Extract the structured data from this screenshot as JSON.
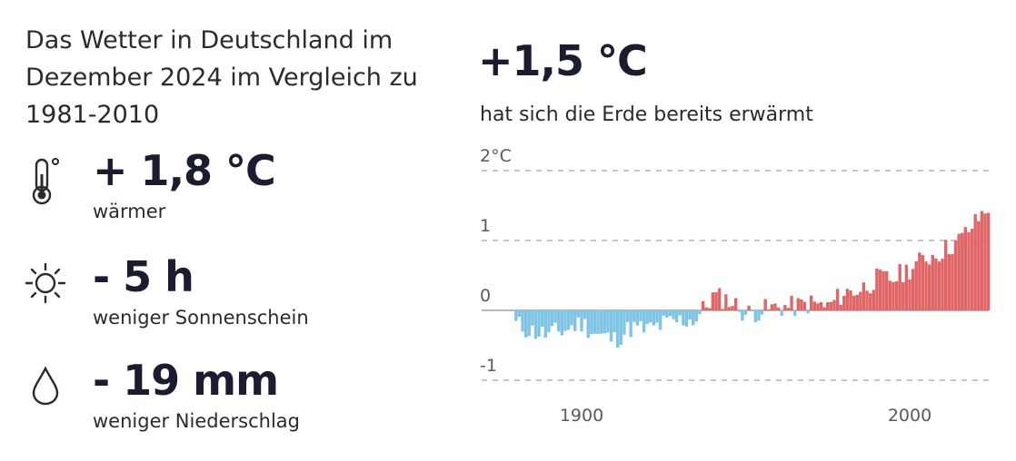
{
  "left": {
    "title": "Das Wetter in Deutschland im Dezember 2024 im Vergleich zu 1981-2010",
    "stats": [
      {
        "icon": "thermometer-icon",
        "value": "+ 1,8 °C",
        "label": "wärmer"
      },
      {
        "icon": "sun-icon",
        "value": "- 5 h",
        "label": "weniger Sonnenschein"
      },
      {
        "icon": "raindrop-icon",
        "value": "- 19 mm",
        "label": "weniger Niederschlag"
      }
    ]
  },
  "right": {
    "value": "+1,5 °C",
    "description": "hat sich die Erde bereits erwärmt"
  },
  "chart_data": {
    "type": "bar",
    "title": "",
    "xlabel": "",
    "ylabel": "",
    "unit": "°C",
    "x_ticks": [
      1900,
      2000
    ],
    "y_ticks": [
      {
        "value": 2,
        "label": "2°C"
      },
      {
        "value": 1,
        "label": "1"
      },
      {
        "value": 0,
        "label": "0"
      },
      {
        "value": -1,
        "label": "-1"
      }
    ],
    "xlim": [
      1850,
      2024
    ],
    "ylim": [
      -1.2,
      2.2
    ],
    "grid": "horizontal-dashed",
    "colors": {
      "positive": "#e06666",
      "negative": "#7ec4e4",
      "grid": "#c6c6c6",
      "zero": "#b9b9b9"
    },
    "anchors": [
      [
        1880,
        -0.2
      ],
      [
        1885,
        -0.3
      ],
      [
        1890,
        -0.35
      ],
      [
        1895,
        -0.28
      ],
      [
        1900,
        -0.18
      ],
      [
        1905,
        -0.35
      ],
      [
        1910,
        -0.42
      ],
      [
        1915,
        -0.25
      ],
      [
        1920,
        -0.28
      ],
      [
        1925,
        -0.2
      ],
      [
        1930,
        -0.15
      ],
      [
        1935,
        -0.12
      ],
      [
        1940,
        0.2
      ],
      [
        1945,
        0.15
      ],
      [
        1950,
        -0.05
      ],
      [
        1955,
        0.0
      ],
      [
        1960,
        0.05
      ],
      [
        1965,
        0.05
      ],
      [
        1970,
        0.1
      ],
      [
        1975,
        0.05
      ],
      [
        1980,
        0.25
      ],
      [
        1985,
        0.3
      ],
      [
        1990,
        0.45
      ],
      [
        1995,
        0.45
      ],
      [
        2000,
        0.6
      ],
      [
        2005,
        0.75
      ],
      [
        2010,
        0.85
      ],
      [
        2015,
        1.0
      ],
      [
        2020,
        1.25
      ],
      [
        2024,
        1.5
      ]
    ]
  }
}
